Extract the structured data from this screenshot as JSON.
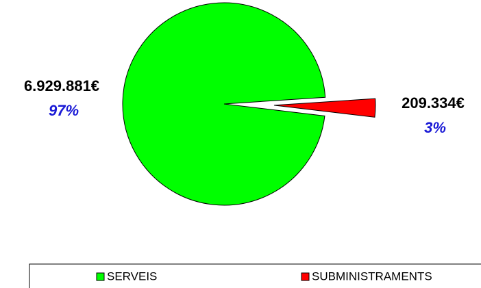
{
  "chart_data": {
    "type": "pie",
    "categories": [
      "SERVEIS",
      "SUBMINISTRAMENTS"
    ],
    "values": [
      6929881,
      209334
    ],
    "value_labels": [
      "6.929.881€",
      "209.334€"
    ],
    "percentages": [
      97,
      3
    ],
    "percentage_labels": [
      "97%",
      "3%"
    ],
    "colors": [
      "#00ff00",
      "#ff0000"
    ],
    "exploded": [
      false,
      true
    ],
    "legend": "bottom"
  }
}
